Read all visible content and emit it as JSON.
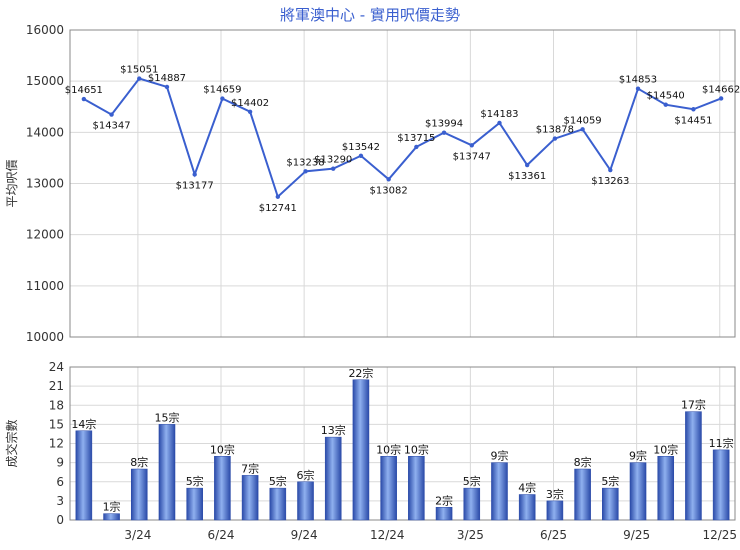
{
  "chart_data": [
    {
      "type": "line",
      "title": "將軍澳中心 - 實用呎價走勢",
      "ylabel": "平均呎價",
      "ylim": [
        10000,
        16000
      ],
      "yticks": [
        10000,
        11000,
        12000,
        13000,
        14000,
        15000,
        16000
      ],
      "x_ticks": [
        "3/24",
        "6/24",
        "9/24",
        "12/24",
        "3/25",
        "6/25",
        "9/25",
        "12/25"
      ],
      "grid": true,
      "values": [
        14651,
        14347,
        15051,
        14887,
        13177,
        14659,
        14402,
        12741,
        13238,
        13290,
        13542,
        13082,
        13715,
        13994,
        13747,
        14183,
        13361,
        13878,
        14059,
        13263,
        14853,
        14540,
        14451,
        14662
      ]
    },
    {
      "type": "bar",
      "ylabel": "成交宗數",
      "ylim": [
        0,
        24
      ],
      "yticks": [
        0,
        3,
        6,
        9,
        12,
        15,
        18,
        21,
        24
      ],
      "x_ticks": [
        "3/24",
        "6/24",
        "9/24",
        "12/24",
        "3/25",
        "6/25",
        "9/25",
        "12/25"
      ],
      "unit_suffix": "宗",
      "grid": true,
      "values": [
        14,
        1,
        8,
        15,
        5,
        10,
        7,
        5,
        6,
        13,
        22,
        10,
        10,
        2,
        5,
        9,
        4,
        3,
        8,
        5,
        9,
        10,
        17,
        11
      ]
    }
  ],
  "colors": {
    "line": "#3a5fcf",
    "bar_dark": "#2a4aa8",
    "bar_light": "#8fb0ef",
    "title": "#3a5fcf"
  }
}
